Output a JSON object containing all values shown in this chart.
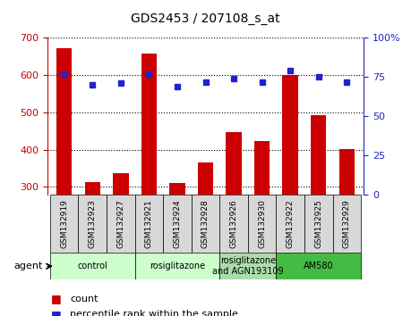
{
  "title": "GDS2453 / 207108_s_at",
  "samples": [
    "GSM132919",
    "GSM132923",
    "GSM132927",
    "GSM132921",
    "GSM132924",
    "GSM132928",
    "GSM132926",
    "GSM132930",
    "GSM132922",
    "GSM132925",
    "GSM132929"
  ],
  "counts": [
    672,
    312,
    338,
    657,
    310,
    365,
    448,
    422,
    600,
    493,
    402
  ],
  "percentiles": [
    77,
    70,
    71,
    77,
    69,
    72,
    74,
    72,
    79,
    75,
    72
  ],
  "ylim_left": [
    280,
    700
  ],
  "ylim_right": [
    0,
    100
  ],
  "yticks_left": [
    300,
    400,
    500,
    600,
    700
  ],
  "yticks_right": [
    0,
    25,
    50,
    75,
    100
  ],
  "ytick_labels_right": [
    "0",
    "25",
    "50",
    "75",
    "100%"
  ],
  "bar_color": "#cc0000",
  "dot_color": "#2222cc",
  "agent_groups": [
    {
      "label": "control",
      "start": 0,
      "end": 2,
      "color": "#ccffcc"
    },
    {
      "label": "rosiglitazone",
      "start": 3,
      "end": 5,
      "color": "#ccffcc"
    },
    {
      "label": "rosiglitazone\nand AGN193109",
      "start": 6,
      "end": 7,
      "color": "#aaddaa"
    },
    {
      "label": "AM580",
      "start": 8,
      "end": 10,
      "color": "#44bb44"
    }
  ],
  "agent_label": "agent",
  "legend_bar_label": "count",
  "legend_dot_label": "percentile rank within the sample",
  "bar_width": 0.55,
  "tick_label_bg": "#dddddd",
  "xlabel_fontsize": 7,
  "tick_fontsize": 8
}
